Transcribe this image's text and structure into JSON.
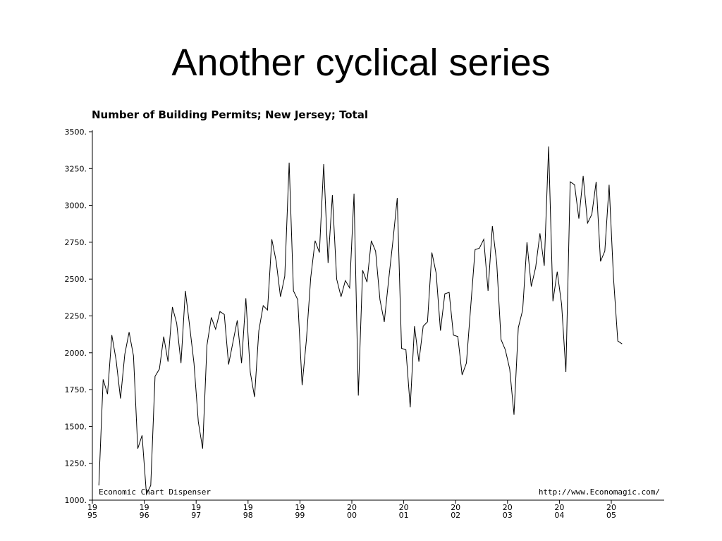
{
  "slide": {
    "title": "Another cyclical series"
  },
  "chart_data": {
    "type": "line",
    "title": "Number of Building Permits; New Jersey; Total",
    "source_left": "Economic Chart Dispenser",
    "source_right": "http://www.Economagic.com/",
    "ylim": [
      1000,
      3500
    ],
    "y_ticks": [
      1000,
      1250,
      1500,
      1750,
      2000,
      2250,
      2500,
      2750,
      3000,
      3250,
      3500
    ],
    "y_tick_labels": [
      "1000.",
      "1250.",
      "1500.",
      "1750.",
      "2000.",
      "2250.",
      "2500.",
      "2750.",
      "3000.",
      "3250.",
      "3500."
    ],
    "x_range": [
      1995,
      2006
    ],
    "x_ticks": [
      {
        "year": 1995,
        "top": "19",
        "bottom": "95"
      },
      {
        "year": 1996,
        "top": "19",
        "bottom": "96"
      },
      {
        "year": 1997,
        "top": "19",
        "bottom": "97"
      },
      {
        "year": 1998,
        "top": "19",
        "bottom": "98"
      },
      {
        "year": 1999,
        "top": "19",
        "bottom": "99"
      },
      {
        "year": 2000,
        "top": "20",
        "bottom": "00"
      },
      {
        "year": 2001,
        "top": "20",
        "bottom": "01"
      },
      {
        "year": 2002,
        "top": "20",
        "bottom": "02"
      },
      {
        "year": 2003,
        "top": "20",
        "bottom": "03"
      },
      {
        "year": 2004,
        "top": "20",
        "bottom": "04"
      },
      {
        "year": 2005,
        "top": "20",
        "bottom": "05"
      }
    ],
    "series": [
      {
        "x": [
          1995.125,
          1995.208,
          1995.292,
          1995.375,
          1995.458,
          1995.542,
          1995.625,
          1995.708,
          1995.792,
          1995.875,
          1995.958,
          1996.042,
          1996.125,
          1996.208,
          1996.292,
          1996.375,
          1996.458,
          1996.542,
          1996.625,
          1996.708,
          1996.792,
          1996.875,
          1996.958,
          1997.042,
          1997.125,
          1997.208,
          1997.292,
          1997.375,
          1997.458,
          1997.542,
          1997.625,
          1997.708,
          1997.792,
          1997.875,
          1997.958,
          1998.042,
          1998.125,
          1998.208,
          1998.292,
          1998.375,
          1998.458,
          1998.542,
          1998.625,
          1998.708,
          1998.792,
          1998.875,
          1998.958,
          1999.042,
          1999.125,
          1999.208,
          1999.292,
          1999.375,
          1999.458,
          1999.542,
          1999.625,
          1999.708,
          1999.792,
          1999.875,
          1999.958,
          2000.042,
          2000.125,
          2000.208,
          2000.292,
          2000.375,
          2000.458,
          2000.542,
          2000.625,
          2000.708,
          2000.792,
          2000.875,
          2000.958,
          2001.042,
          2001.125,
          2001.208,
          2001.292,
          2001.375,
          2001.458,
          2001.542,
          2001.625,
          2001.708,
          2001.792,
          2001.875,
          2001.958,
          2002.042,
          2002.125,
          2002.208,
          2002.292,
          2002.375,
          2002.458,
          2002.542,
          2002.625,
          2002.708,
          2002.792,
          2002.875,
          2002.958,
          2003.042,
          2003.125,
          2003.208,
          2003.292,
          2003.375,
          2003.458,
          2003.542,
          2003.625,
          2003.708,
          2003.792,
          2003.875,
          2003.958,
          2004.042,
          2004.125,
          2004.208,
          2004.292,
          2004.375,
          2004.458,
          2004.542,
          2004.625,
          2004.708,
          2004.792,
          2004.875,
          2004.958,
          2005.042,
          2005.125,
          2005.208
        ],
        "values": [
          1100,
          1820,
          1720,
          2120,
          1950,
          1690,
          1990,
          2140,
          1980,
          1350,
          1440,
          1040,
          1100,
          1840,
          1890,
          2110,
          1940,
          2310,
          2200,
          1930,
          2420,
          2180,
          1930,
          1530,
          1350,
          2050,
          2240,
          2160,
          2280,
          2260,
          1920,
          2070,
          2220,
          1930,
          2370,
          1870,
          1700,
          2150,
          2320,
          2290,
          2770,
          2620,
          2380,
          2520,
          3290,
          2420,
          2360,
          1780,
          2090,
          2510,
          2760,
          2680,
          3280,
          2610,
          3070,
          2500,
          2380,
          2490,
          2440,
          3080,
          1710,
          2560,
          2480,
          2760,
          2690,
          2360,
          2210,
          2490,
          2760,
          3050,
          2030,
          2020,
          1630,
          2180,
          1940,
          2180,
          2210,
          2680,
          2540,
          2150,
          2400,
          2410,
          2120,
          2110,
          1850,
          1930,
          2320,
          2700,
          2710,
          2770,
          2420,
          2860,
          2610,
          2090,
          2020,
          1890,
          1580,
          2170,
          2290,
          2750,
          2450,
          2580,
          2810,
          2590,
          3400,
          2350,
          2550,
          2330,
          1870,
          3160,
          3140,
          2910,
          3200,
          2880,
          2940,
          3160,
          2620,
          2690,
          3140,
          2510,
          2080,
          2060
        ]
      }
    ]
  }
}
